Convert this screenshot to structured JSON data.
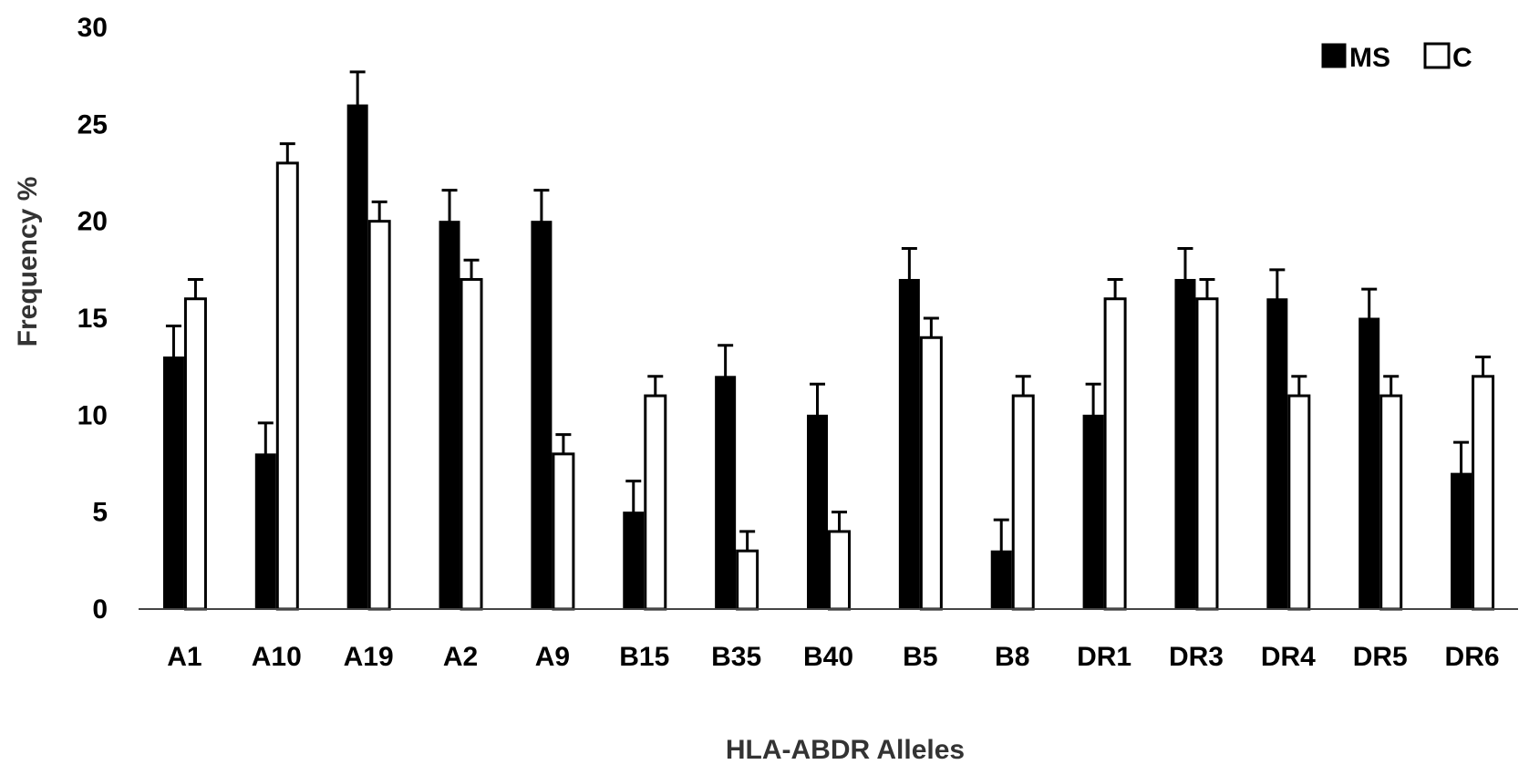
{
  "chart_data": {
    "type": "bar",
    "title": "",
    "xlabel": "HLA-ABDR Alleles",
    "ylabel": "Frequency %",
    "ylim": [
      0,
      30
    ],
    "yticks": [
      0,
      5,
      10,
      15,
      20,
      25,
      30
    ],
    "ytick_labels": [
      "0",
      "5",
      "10",
      "15",
      "20",
      "25",
      "30"
    ],
    "grid": false,
    "legend_position": "top-right",
    "categories": [
      "A1",
      "A10",
      "A19",
      "A2",
      "A9",
      "B15",
      "B35",
      "B40",
      "B5",
      "B8",
      "DR1",
      "DR3",
      "DR4",
      "DR5",
      "DR6"
    ],
    "series": [
      {
        "name": "MS",
        "fill": "#000000",
        "values": [
          13,
          8,
          26,
          20,
          20,
          5,
          12,
          10,
          17,
          3,
          10,
          17,
          16,
          15,
          7
        ],
        "errors": [
          1.6,
          1.6,
          1.7,
          1.6,
          1.6,
          1.6,
          1.6,
          1.6,
          1.6,
          1.6,
          1.6,
          1.6,
          1.5,
          1.5,
          1.6
        ]
      },
      {
        "name": "C",
        "fill": "#ffffff",
        "values": [
          16,
          23,
          20,
          17,
          8,
          11,
          3,
          4,
          14,
          11,
          16,
          16,
          11,
          11,
          12
        ],
        "errors": [
          1,
          1,
          1,
          1,
          1,
          1,
          1,
          1,
          1,
          1,
          1,
          1,
          1,
          1,
          1
        ]
      }
    ]
  }
}
